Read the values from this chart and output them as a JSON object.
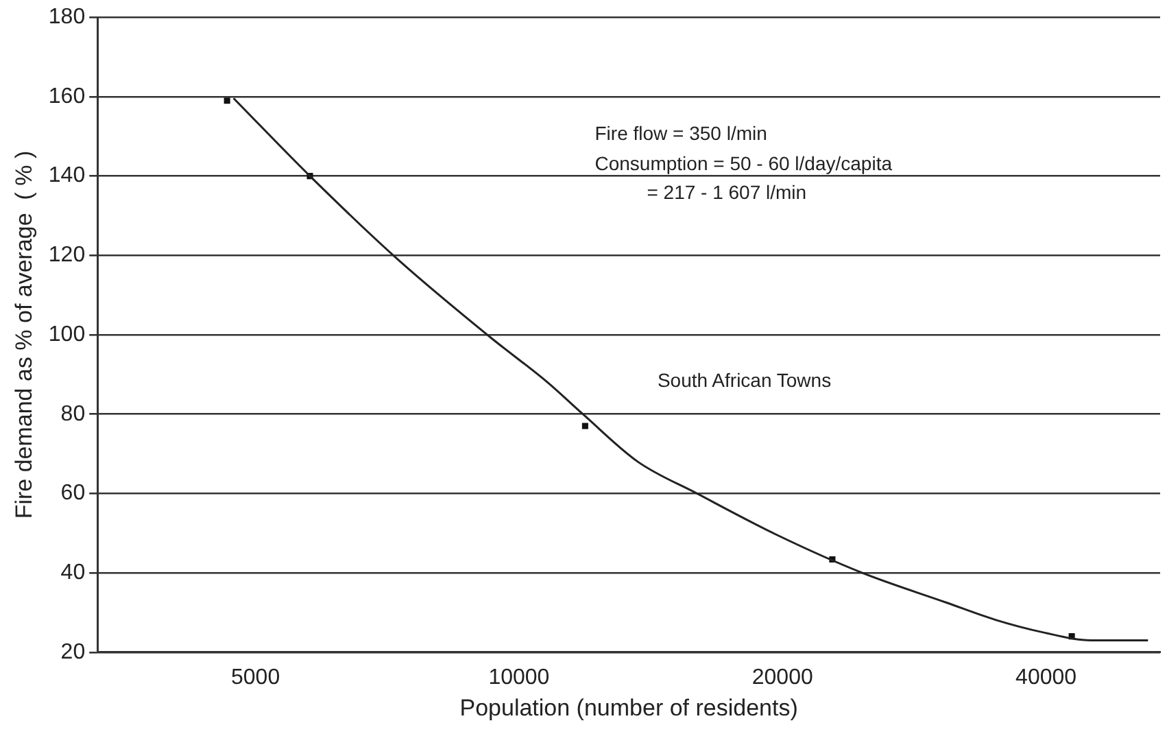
{
  "chart_data": {
    "type": "line",
    "xlabel": "Population (number of residents)",
    "ylabel": "Fire demand as % of average  ( % )",
    "annotations": [
      "Fire flow = 350 l/min",
      "Consumption = 50 - 60 l/day/capita",
      "= 217 - 1 607 l/min",
      "South African Towns"
    ],
    "log": "x",
    "xlim": [
      3300,
      54000
    ],
    "xticks": [
      5000,
      10000,
      20000,
      40000
    ],
    "ylim": [
      20,
      180
    ],
    "yticks": [
      20,
      40,
      60,
      80,
      100,
      120,
      140,
      160,
      180
    ],
    "grid": "y",
    "legend": false,
    "series": [
      {
        "type": "line",
        "color": "#222222",
        "marker": "none",
        "x": [
          4720,
          5770,
          7270,
          9270,
          10780,
          11830,
          13670,
          15970,
          19650,
          24670,
          30790,
          34970,
          39700,
          45060,
          52300
        ],
        "values": [
          159.6,
          140,
          119,
          99.4,
          88,
          80,
          68,
          60,
          49.7,
          40,
          32.5,
          28.2,
          25,
          23,
          23
        ]
      },
      {
        "type": "scatter",
        "color": "#111111",
        "marker": "square",
        "x": [
          4640,
          5770,
          11900,
          22800,
          42800
        ],
        "values": [
          159,
          140,
          77,
          43.4,
          24
        ]
      }
    ]
  }
}
